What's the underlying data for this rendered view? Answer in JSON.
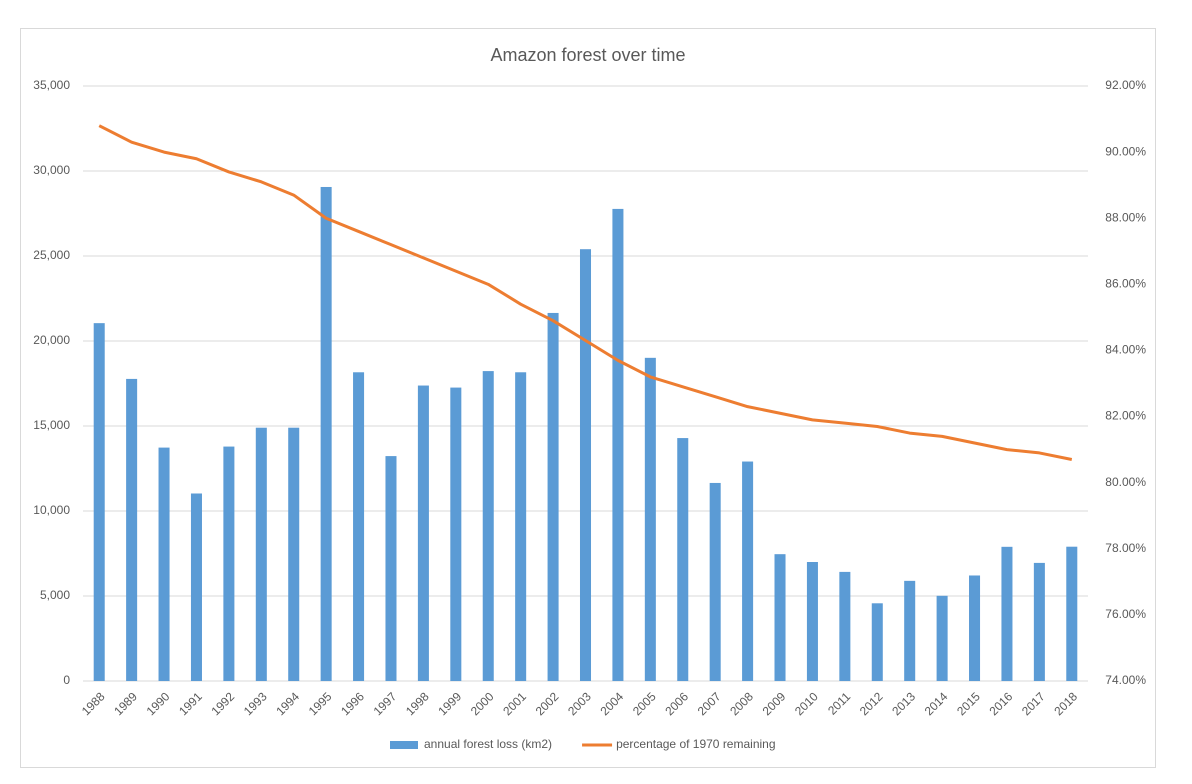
{
  "chart_data": {
    "type": "bar",
    "title": "Amazon forest over time",
    "categories": [
      "1988",
      "1989",
      "1990",
      "1991",
      "1992",
      "1993",
      "1994",
      "1995",
      "1996",
      "1997",
      "1998",
      "1999",
      "2000",
      "2001",
      "2002",
      "2003",
      "2004",
      "2005",
      "2006",
      "2007",
      "2008",
      "2009",
      "2010",
      "2011",
      "2012",
      "2013",
      "2014",
      "2015",
      "2016",
      "2017",
      "2018"
    ],
    "series": [
      {
        "name": "annual forest loss (km2)",
        "type": "bar",
        "color": "#5b9bd5",
        "values": [
          21050,
          17770,
          13730,
          11030,
          13790,
          14900,
          14900,
          29060,
          18160,
          13230,
          17380,
          17260,
          18230,
          18160,
          21650,
          25400,
          27770,
          19010,
          14290,
          11650,
          12910,
          7460,
          7000,
          6418,
          4571,
          5891,
          5012,
          6207,
          7893,
          6947,
          7900
        ]
      },
      {
        "name": "percentage of 1970 remaining",
        "type": "line",
        "axis": "y2",
        "color": "#ed7d31",
        "values": [
          90.8,
          90.3,
          90.0,
          89.8,
          89.4,
          89.1,
          88.7,
          88.0,
          87.6,
          87.2,
          86.8,
          86.4,
          86.0,
          85.4,
          84.9,
          84.3,
          83.7,
          83.2,
          82.9,
          82.6,
          82.3,
          82.1,
          81.9,
          81.8,
          81.7,
          81.5,
          81.4,
          81.2,
          81.0,
          80.9,
          80.7
        ]
      }
    ],
    "ylim": [
      0,
      35000
    ],
    "yticks": [
      0,
      {
        "value": 5000,
        "label": "5,000"
      },
      {
        "value": 10000,
        "label": "10,000"
      },
      {
        "value": 15000,
        "label": "15,000"
      },
      {
        "value": 20000,
        "label": "20,000"
      },
      {
        "value": 25000,
        "label": "25,000"
      },
      {
        "value": 30000,
        "label": "30,000"
      },
      {
        "value": 35000,
        "label": "35,000"
      }
    ],
    "y2lim": [
      74,
      92
    ],
    "y2ticks": [
      {
        "value": 74,
        "label": "74.00%"
      },
      {
        "value": 76,
        "label": "76.00%"
      },
      {
        "value": 78,
        "label": "78.00%"
      },
      {
        "value": 80,
        "label": "80.00%"
      },
      {
        "value": 82,
        "label": "82.00%"
      },
      {
        "value": 84,
        "label": "84.00%"
      },
      {
        "value": 86,
        "label": "86.00%"
      },
      {
        "value": 88,
        "label": "88.00%"
      },
      {
        "value": 90,
        "label": "90.00%"
      },
      {
        "value": 92,
        "label": "92.00%"
      }
    ],
    "grid": true,
    "legend": "bottom"
  }
}
